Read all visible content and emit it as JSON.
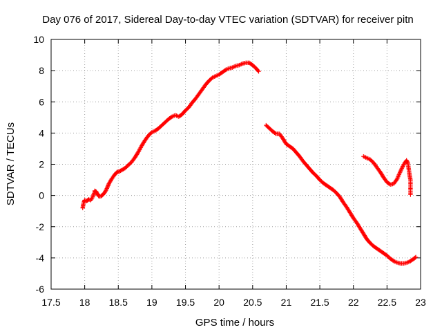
{
  "chart_data": {
    "type": "scatter",
    "title": "Day 076 of 2017, Sidereal Day-to-day VTEC variation (SDTVAR) for receiver pitn",
    "xlabel": "GPS time / hours",
    "ylabel": "SDTVAR / TECUs",
    "xlim": [
      17.5,
      23
    ],
    "ylim": [
      -6,
      10
    ],
    "xticks": [
      "17.5",
      "18",
      "18.5",
      "19",
      "19.5",
      "20",
      "20.5",
      "21",
      "21.5",
      "22",
      "22.5",
      "23"
    ],
    "yticks": [
      "-6",
      "-4",
      "-2",
      "0",
      "2",
      "4",
      "6",
      "8",
      "10"
    ],
    "grid": true,
    "marker": "+",
    "color": "#ff0000",
    "series": [
      {
        "name": "segment-1",
        "points": [
          [
            17.97,
            -0.8
          ],
          [
            17.98,
            -0.55
          ],
          [
            17.99,
            -0.4
          ],
          [
            18.0,
            -0.3
          ],
          [
            18.03,
            -0.35
          ],
          [
            18.06,
            -0.25
          ],
          [
            18.09,
            -0.3
          ],
          [
            18.12,
            -0.1
          ],
          [
            18.14,
            0.15
          ],
          [
            18.15,
            0.3
          ],
          [
            18.17,
            0.25
          ],
          [
            18.19,
            0.1
          ],
          [
            18.21,
            -0.05
          ],
          [
            18.24,
            -0.05
          ],
          [
            18.27,
            0.05
          ],
          [
            18.3,
            0.2
          ],
          [
            18.33,
            0.45
          ],
          [
            18.36,
            0.75
          ],
          [
            18.4,
            1.05
          ],
          [
            18.44,
            1.3
          ],
          [
            18.48,
            1.5
          ],
          [
            18.52,
            1.55
          ],
          [
            18.56,
            1.65
          ],
          [
            18.6,
            1.75
          ],
          [
            18.65,
            1.95
          ],
          [
            18.7,
            2.15
          ],
          [
            18.75,
            2.45
          ],
          [
            18.8,
            2.8
          ],
          [
            18.85,
            3.2
          ],
          [
            18.9,
            3.55
          ],
          [
            18.95,
            3.85
          ],
          [
            19.0,
            4.05
          ],
          [
            19.05,
            4.15
          ],
          [
            19.1,
            4.3
          ],
          [
            19.15,
            4.5
          ],
          [
            19.2,
            4.7
          ],
          [
            19.25,
            4.9
          ],
          [
            19.3,
            5.05
          ],
          [
            19.35,
            5.15
          ],
          [
            19.4,
            5.05
          ],
          [
            19.45,
            5.2
          ],
          [
            19.5,
            5.45
          ],
          [
            19.55,
            5.65
          ],
          [
            19.6,
            5.95
          ],
          [
            19.65,
            6.2
          ],
          [
            19.7,
            6.5
          ],
          [
            19.75,
            6.8
          ],
          [
            19.8,
            7.1
          ],
          [
            19.85,
            7.35
          ],
          [
            19.9,
            7.55
          ],
          [
            19.95,
            7.65
          ],
          [
            20.0,
            7.75
          ],
          [
            20.05,
            7.9
          ],
          [
            20.1,
            8.05
          ],
          [
            20.15,
            8.15
          ],
          [
            20.2,
            8.2
          ],
          [
            20.25,
            8.3
          ],
          [
            20.3,
            8.35
          ],
          [
            20.35,
            8.45
          ],
          [
            20.4,
            8.5
          ],
          [
            20.45,
            8.5
          ],
          [
            20.5,
            8.35
          ],
          [
            20.55,
            8.15
          ],
          [
            20.59,
            7.95
          ]
        ]
      },
      {
        "name": "segment-2",
        "points": [
          [
            20.7,
            4.5
          ],
          [
            20.75,
            4.3
          ],
          [
            20.8,
            4.1
          ],
          [
            20.85,
            3.95
          ],
          [
            20.9,
            3.95
          ],
          [
            20.95,
            3.65
          ],
          [
            21.0,
            3.3
          ],
          [
            21.05,
            3.15
          ],
          [
            21.1,
            3.0
          ],
          [
            21.15,
            2.75
          ],
          [
            21.2,
            2.5
          ],
          [
            21.25,
            2.2
          ],
          [
            21.3,
            1.95
          ],
          [
            21.35,
            1.7
          ],
          [
            21.4,
            1.45
          ],
          [
            21.45,
            1.25
          ],
          [
            21.5,
            1.0
          ],
          [
            21.55,
            0.8
          ],
          [
            21.6,
            0.65
          ],
          [
            21.65,
            0.5
          ],
          [
            21.7,
            0.35
          ],
          [
            21.75,
            0.15
          ],
          [
            21.8,
            -0.1
          ],
          [
            21.85,
            -0.45
          ],
          [
            21.9,
            -0.75
          ],
          [
            21.95,
            -1.1
          ],
          [
            22.0,
            -1.45
          ],
          [
            22.05,
            -1.75
          ],
          [
            22.1,
            -2.1
          ],
          [
            22.15,
            -2.45
          ],
          [
            22.2,
            -2.8
          ],
          [
            22.25,
            -3.05
          ],
          [
            22.3,
            -3.25
          ],
          [
            22.35,
            -3.4
          ],
          [
            22.4,
            -3.55
          ],
          [
            22.45,
            -3.7
          ],
          [
            22.5,
            -3.85
          ],
          [
            22.55,
            -4.05
          ],
          [
            22.6,
            -4.2
          ],
          [
            22.65,
            -4.3
          ],
          [
            22.7,
            -4.35
          ],
          [
            22.75,
            -4.35
          ],
          [
            22.8,
            -4.3
          ],
          [
            22.85,
            -4.2
          ],
          [
            22.9,
            -4.05
          ],
          [
            22.93,
            -3.95
          ]
        ]
      },
      {
        "name": "segment-3",
        "points": [
          [
            22.15,
            2.5
          ],
          [
            22.2,
            2.4
          ],
          [
            22.25,
            2.3
          ],
          [
            22.3,
            2.1
          ],
          [
            22.35,
            1.8
          ],
          [
            22.4,
            1.5
          ],
          [
            22.45,
            1.15
          ],
          [
            22.5,
            0.85
          ],
          [
            22.55,
            0.7
          ],
          [
            22.6,
            0.75
          ],
          [
            22.65,
            1.05
          ],
          [
            22.7,
            1.55
          ],
          [
            22.75,
            2.0
          ],
          [
            22.79,
            2.25
          ],
          [
            22.81,
            2.1
          ],
          [
            22.82,
            1.8
          ],
          [
            22.83,
            1.5
          ],
          [
            22.84,
            1.2
          ],
          [
            22.85,
            1.0
          ],
          [
            22.85,
            0.05
          ]
        ]
      }
    ]
  }
}
